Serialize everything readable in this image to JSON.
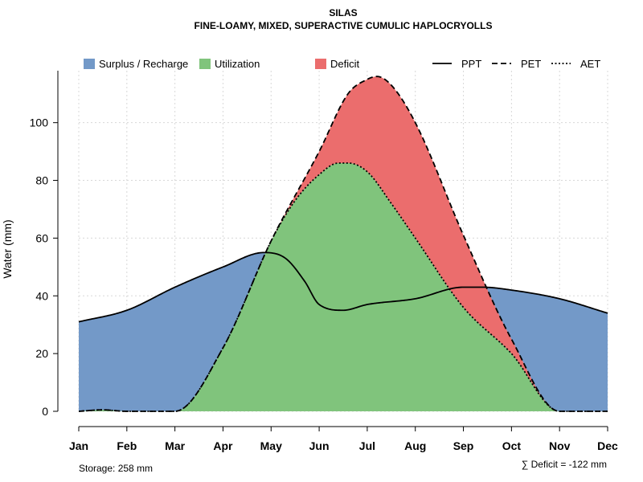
{
  "chart_data": {
    "type": "area",
    "title": "SILAS",
    "subtitle": "FINE-LOAMY, MIXED, SUPERACTIVE CUMULIC HAPLOCRYOLLS",
    "xlabel": "",
    "ylabel": "Water (mm)",
    "ylim": [
      0,
      118
    ],
    "yticks": [
      0,
      20,
      40,
      60,
      80,
      100
    ],
    "grid": true,
    "legend_position": "top",
    "categories": [
      "Jan",
      "Feb",
      "Mar",
      "Apr",
      "May",
      "Jun",
      "Jul",
      "Aug",
      "Sep",
      "Oct",
      "Nov",
      "Dec"
    ],
    "series": [
      {
        "name": "PPT",
        "style": "solid",
        "x": [
          1,
          2,
          3,
          4,
          4.85,
          5.3,
          5.7,
          6,
          6.5,
          7,
          8,
          9,
          9.4,
          10,
          11,
          12
        ],
        "values": [
          31,
          35,
          43,
          50,
          55,
          53,
          45,
          37,
          35,
          37,
          39,
          43,
          43,
          42,
          39,
          34
        ]
      },
      {
        "name": "PET",
        "style": "dashed",
        "x": [
          1,
          1.5,
          2,
          3,
          4,
          5,
          6,
          6.6,
          7,
          7.2,
          7.5,
          8,
          9,
          10,
          11,
          12
        ],
        "values": [
          0,
          0.5,
          0,
          0,
          22,
          59,
          90,
          110,
          115,
          116,
          113,
          100,
          61,
          25,
          0,
          0
        ]
      },
      {
        "name": "AET",
        "style": "dotted",
        "x": [
          1,
          1.5,
          2,
          3,
          4,
          5,
          5.5,
          6,
          6.4,
          6.6,
          7,
          7.5,
          8,
          9,
          10,
          11,
          12
        ],
        "values": [
          0,
          0.5,
          0,
          0,
          22,
          59,
          73,
          82,
          86,
          86,
          83,
          72,
          60,
          36,
          20,
          0,
          0
        ]
      }
    ],
    "legend": [
      {
        "label": "Surplus / Recharge",
        "kind": "fill",
        "color": "#7399c8"
      },
      {
        "label": "Utilization",
        "kind": "fill",
        "color": "#80c47c"
      },
      {
        "label": "Deficit",
        "kind": "fill",
        "color": "#eb6d6d"
      },
      {
        "label": "PPT",
        "kind": "line",
        "dash": "solid"
      },
      {
        "label": "PET",
        "kind": "line",
        "dash": "dashed"
      },
      {
        "label": "AET",
        "kind": "line",
        "dash": "dotted"
      }
    ],
    "colors": {
      "surplus": "#7399c8",
      "utilization": "#80c47c",
      "deficit": "#eb6d6d"
    },
    "storage_note": "Storage: 258 mm",
    "deficit_note": "∑ Deficit = -122 mm"
  }
}
